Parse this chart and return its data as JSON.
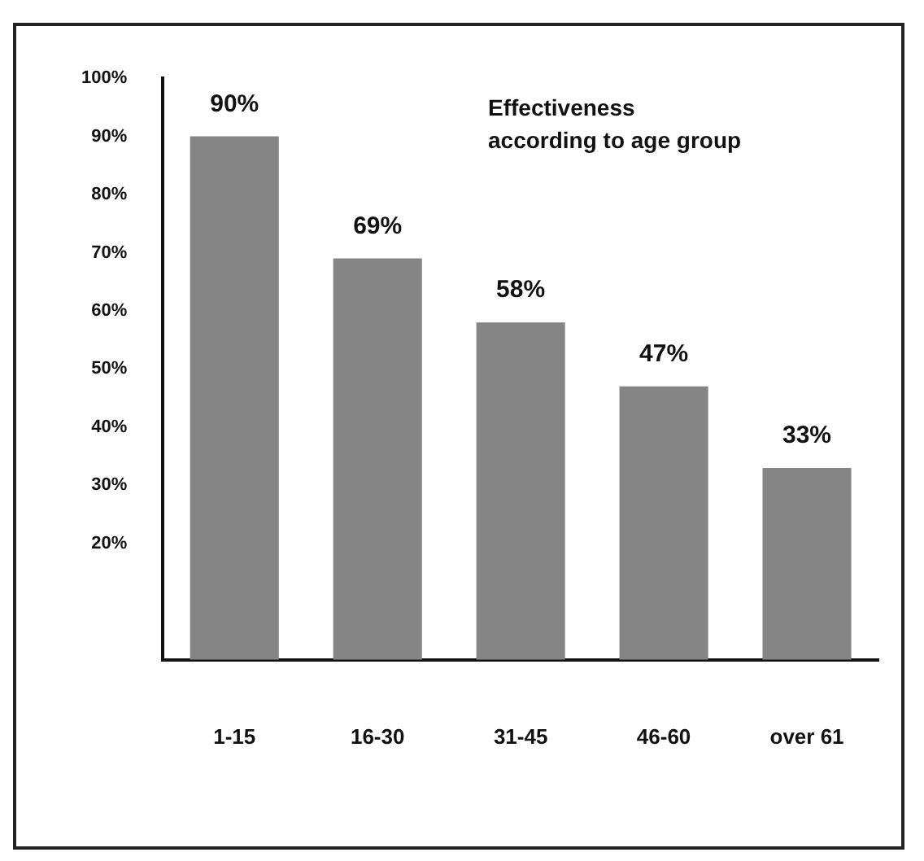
{
  "chart_data": {
    "type": "bar",
    "title": "Effectiveness\naccording to age group",
    "categories": [
      "1-15",
      "16-30",
      "31-45",
      "46-60",
      "over 61"
    ],
    "values": [
      90,
      69,
      58,
      47,
      33
    ],
    "value_labels": [
      "90%",
      "69%",
      "58%",
      "47%",
      "33%"
    ],
    "color": "#858585",
    "ylim": [
      0,
      100
    ],
    "yticks": [
      {
        "value": 20,
        "label": "20%"
      },
      {
        "value": 30,
        "label": "30%"
      },
      {
        "value": 40,
        "label": "40%"
      },
      {
        "value": 50,
        "label": "50%"
      },
      {
        "value": 60,
        "label": "60%"
      },
      {
        "value": 70,
        "label": "70%"
      },
      {
        "value": 80,
        "label": "80%"
      },
      {
        "value": 90,
        "label": "90%"
      },
      {
        "value": 100,
        "label": "100%"
      }
    ],
    "grid": false,
    "legend": false
  }
}
